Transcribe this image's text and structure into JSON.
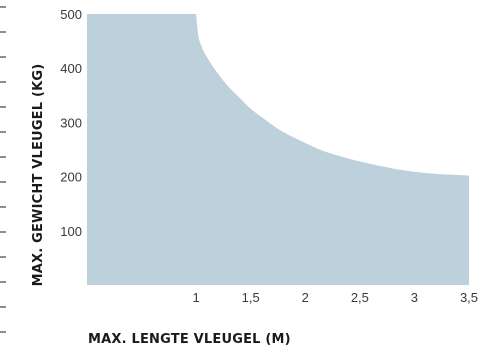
{
  "chart_data": {
    "type": "area",
    "xlabel": "MAX. LENGTE VLEUGEL (M)",
    "ylabel": "MAX. GEWICHT VLEUGEL (KG)",
    "xlim": [
      0,
      3.5
    ],
    "ylim": [
      0,
      500
    ],
    "x_ticks": [
      1,
      1.5,
      2,
      2.5,
      3,
      3.5
    ],
    "x_tick_labels": [
      "1",
      "1,5",
      "2",
      "2,5",
      "3",
      "3,5"
    ],
    "y_ticks": [
      100,
      200,
      300,
      400,
      500
    ],
    "y_tick_labels": [
      "100",
      "200",
      "300",
      "400",
      "500"
    ],
    "grid": false,
    "fill_color": "#bdd1dc",
    "series": [
      {
        "x": [
          0,
          1.0,
          1.02,
          1.05,
          1.1,
          1.2,
          1.3,
          1.4,
          1.5,
          1.6,
          1.7,
          1.8,
          2.0,
          2.2,
          2.5,
          2.8,
          3.0,
          3.2,
          3.4,
          3.5
        ],
        "values": [
          500,
          500,
          460,
          440,
          420,
          390,
          365,
          345,
          325,
          310,
          295,
          282,
          262,
          245,
          228,
          215,
          209,
          205,
          203,
          202
        ]
      }
    ]
  }
}
